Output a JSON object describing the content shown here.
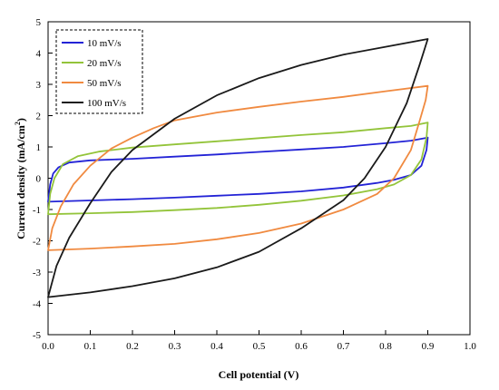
{
  "chart_data": {
    "type": "line",
    "xlabel": "Cell potential (V)",
    "ylabel": "Current density (mA/cm",
    "ylabel_sup": "2",
    "ylabel_end": ")",
    "xlim": [
      0.0,
      1.0
    ],
    "ylim": [
      -5,
      5
    ],
    "xticks": [
      "0.0",
      "0.1",
      "0.2",
      "0.3",
      "0.4",
      "0.5",
      "0.6",
      "0.7",
      "0.8",
      "0.9",
      "1.0"
    ],
    "yticks": [
      "-5",
      "-4",
      "-3",
      "-2",
      "-1",
      "0",
      "1",
      "2",
      "3",
      "4",
      "5"
    ],
    "legend_position": "top-left",
    "series": [
      {
        "name": "10 mV/s",
        "color": "#2323d6",
        "points": [
          [
            0.0,
            -0.75
          ],
          [
            0.005,
            -0.2
          ],
          [
            0.012,
            0.15
          ],
          [
            0.025,
            0.35
          ],
          [
            0.05,
            0.5
          ],
          [
            0.1,
            0.57
          ],
          [
            0.2,
            0.62
          ],
          [
            0.3,
            0.69
          ],
          [
            0.4,
            0.76
          ],
          [
            0.5,
            0.84
          ],
          [
            0.6,
            0.92
          ],
          [
            0.7,
            1.0
          ],
          [
            0.8,
            1.12
          ],
          [
            0.86,
            1.2
          ],
          [
            0.9,
            1.3
          ],
          [
            0.897,
            0.9
          ],
          [
            0.885,
            0.4
          ],
          [
            0.86,
            0.1
          ],
          [
            0.82,
            -0.05
          ],
          [
            0.78,
            -0.15
          ],
          [
            0.7,
            -0.3
          ],
          [
            0.6,
            -0.42
          ],
          [
            0.5,
            -0.5
          ],
          [
            0.4,
            -0.56
          ],
          [
            0.3,
            -0.62
          ],
          [
            0.2,
            -0.67
          ],
          [
            0.1,
            -0.71
          ],
          [
            0.0,
            -0.75
          ]
        ]
      },
      {
        "name": "20 mV/s",
        "color": "#93c43a",
        "points": [
          [
            0.0,
            -1.15
          ],
          [
            0.005,
            -0.5
          ],
          [
            0.015,
            0.0
          ],
          [
            0.035,
            0.45
          ],
          [
            0.07,
            0.7
          ],
          [
            0.12,
            0.85
          ],
          [
            0.2,
            0.98
          ],
          [
            0.3,
            1.08
          ],
          [
            0.4,
            1.18
          ],
          [
            0.5,
            1.28
          ],
          [
            0.6,
            1.38
          ],
          [
            0.7,
            1.47
          ],
          [
            0.8,
            1.6
          ],
          [
            0.86,
            1.67
          ],
          [
            0.9,
            1.78
          ],
          [
            0.897,
            1.3
          ],
          [
            0.885,
            0.6
          ],
          [
            0.86,
            0.1
          ],
          [
            0.82,
            -0.2
          ],
          [
            0.78,
            -0.35
          ],
          [
            0.7,
            -0.55
          ],
          [
            0.6,
            -0.72
          ],
          [
            0.5,
            -0.85
          ],
          [
            0.4,
            -0.95
          ],
          [
            0.3,
            -1.02
          ],
          [
            0.2,
            -1.08
          ],
          [
            0.1,
            -1.12
          ],
          [
            0.0,
            -1.15
          ]
        ]
      },
      {
        "name": "50 mV/s",
        "color": "#f08a40",
        "points": [
          [
            0.0,
            -2.3
          ],
          [
            0.01,
            -1.6
          ],
          [
            0.03,
            -0.9
          ],
          [
            0.06,
            -0.2
          ],
          [
            0.1,
            0.4
          ],
          [
            0.15,
            0.95
          ],
          [
            0.2,
            1.3
          ],
          [
            0.25,
            1.6
          ],
          [
            0.3,
            1.85
          ],
          [
            0.4,
            2.1
          ],
          [
            0.5,
            2.28
          ],
          [
            0.6,
            2.45
          ],
          [
            0.7,
            2.6
          ],
          [
            0.8,
            2.78
          ],
          [
            0.9,
            2.95
          ],
          [
            0.895,
            2.5
          ],
          [
            0.88,
            1.8
          ],
          [
            0.86,
            0.9
          ],
          [
            0.82,
            0.0
          ],
          [
            0.78,
            -0.5
          ],
          [
            0.7,
            -1.0
          ],
          [
            0.6,
            -1.45
          ],
          [
            0.5,
            -1.75
          ],
          [
            0.4,
            -1.95
          ],
          [
            0.3,
            -2.1
          ],
          [
            0.2,
            -2.18
          ],
          [
            0.1,
            -2.25
          ],
          [
            0.0,
            -2.3
          ]
        ]
      },
      {
        "name": "100 mV/s",
        "color": "#1a1a1a",
        "points": [
          [
            0.0,
            -3.8
          ],
          [
            0.02,
            -2.8
          ],
          [
            0.05,
            -1.9
          ],
          [
            0.1,
            -0.8
          ],
          [
            0.15,
            0.2
          ],
          [
            0.2,
            0.9
          ],
          [
            0.3,
            1.9
          ],
          [
            0.4,
            2.65
          ],
          [
            0.5,
            3.2
          ],
          [
            0.6,
            3.62
          ],
          [
            0.7,
            3.95
          ],
          [
            0.8,
            4.2
          ],
          [
            0.9,
            4.45
          ],
          [
            0.88,
            3.6
          ],
          [
            0.85,
            2.4
          ],
          [
            0.8,
            1.0
          ],
          [
            0.75,
            0.0
          ],
          [
            0.7,
            -0.7
          ],
          [
            0.6,
            -1.6
          ],
          [
            0.5,
            -2.35
          ],
          [
            0.4,
            -2.85
          ],
          [
            0.3,
            -3.2
          ],
          [
            0.2,
            -3.45
          ],
          [
            0.1,
            -3.65
          ],
          [
            0.0,
            -3.8
          ]
        ]
      }
    ]
  }
}
